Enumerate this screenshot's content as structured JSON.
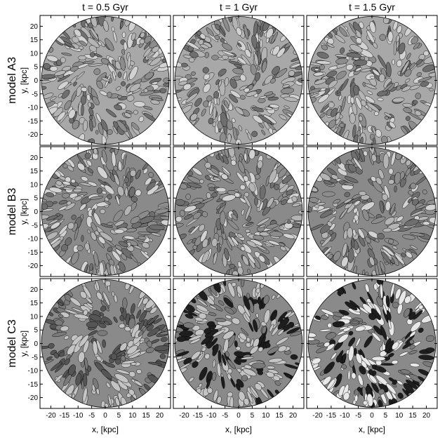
{
  "columns": [
    "t = 0.5 Gyr",
    "t = 1 Gyr",
    "t = 1.5 Gyr"
  ],
  "rows": [
    "model A3",
    "model B3",
    "model C3"
  ],
  "axes": {
    "xlabel": "x, [kpc]",
    "ylabel": "y, [kpc]",
    "xlim": [
      -24,
      24
    ],
    "ylim": [
      -24,
      24
    ],
    "xticks": [
      -20,
      -15,
      -10,
      -5,
      0,
      5,
      10,
      15,
      20
    ],
    "yticks": [
      -20,
      -15,
      -10,
      -5,
      0,
      5,
      10,
      15,
      20
    ]
  }
}
